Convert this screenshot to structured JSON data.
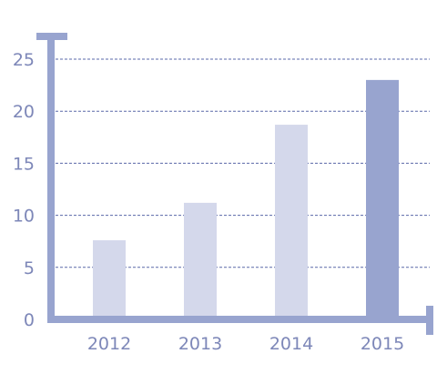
{
  "chart_data": {
    "type": "bar",
    "categories": [
      "2012",
      "2013",
      "2014",
      "2015"
    ],
    "values": [
      7.6,
      11.2,
      18.7,
      23.0
    ],
    "title": "",
    "xlabel": "",
    "ylabel": "",
    "ylim": [
      0,
      25
    ],
    "yticks": [
      0,
      5,
      10,
      15,
      20,
      25
    ],
    "grid": true,
    "highlight_index": 3,
    "colors": {
      "bar": "#d4d8eb",
      "bar_highlight": "#98a4cf",
      "axis": "#98a4cf",
      "grid": "#5a68a8",
      "tick_label": "#7d87b8"
    }
  }
}
